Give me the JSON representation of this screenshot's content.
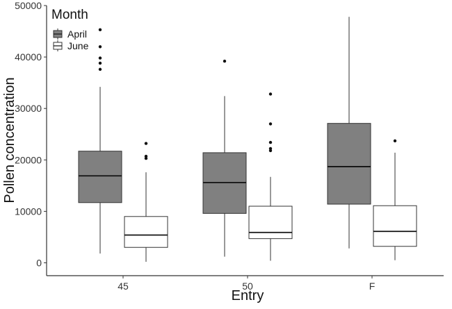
{
  "chart_data": {
    "type": "boxplot",
    "xlabel": "Entry",
    "ylabel": "Pollen concentration",
    "ylim": [
      -2500,
      50000
    ],
    "yticks": [
      0,
      10000,
      20000,
      30000,
      40000,
      50000
    ],
    "grid": false,
    "legend_position": "top-left",
    "legend_title": "Month",
    "categories": [
      "45",
      "50",
      "F"
    ],
    "series": [
      {
        "name": "April",
        "fill": "#808080",
        "boxes": [
          {
            "category": "45",
            "whisker_low": 1800,
            "q1": 11700,
            "median": 16900,
            "q3": 21700,
            "whisker_high": 34200,
            "outliers": [
              37600,
              38800,
              39800,
              42000,
              45300
            ]
          },
          {
            "category": "50",
            "whisker_low": 1200,
            "q1": 9600,
            "median": 15600,
            "q3": 21400,
            "whisker_high": 32400,
            "outliers": [
              39200
            ]
          },
          {
            "category": "F",
            "whisker_low": 2800,
            "q1": 11400,
            "median": 18700,
            "q3": 27100,
            "whisker_high": 47800,
            "outliers": []
          }
        ]
      },
      {
        "name": "June",
        "fill": "#ffffff",
        "boxes": [
          {
            "category": "45",
            "whisker_low": 200,
            "q1": 3000,
            "median": 5400,
            "q3": 9000,
            "whisker_high": 17600,
            "outliers": [
              20300,
              20700,
              23200
            ]
          },
          {
            "category": "50",
            "whisker_low": 400,
            "q1": 4700,
            "median": 5900,
            "q3": 11000,
            "whisker_high": 16700,
            "outliers": [
              21800,
              22200,
              23400,
              27000,
              32800
            ]
          },
          {
            "category": "F",
            "whisker_low": 500,
            "q1": 3200,
            "median": 6100,
            "q3": 11100,
            "whisker_high": 21400,
            "outliers": [
              23700
            ]
          }
        ]
      }
    ]
  }
}
